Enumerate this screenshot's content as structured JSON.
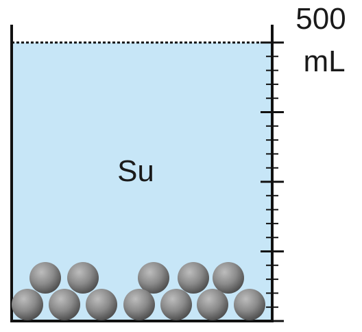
{
  "diagram": {
    "liquid_label": "Su",
    "volume_value": "500",
    "volume_unit": "mL",
    "colors": {
      "liquid": "#c7e6f7",
      "outline": "#111111",
      "ball_light": "#a9a9a9",
      "ball_dark": "#555555"
    },
    "ball_count": 12
  }
}
